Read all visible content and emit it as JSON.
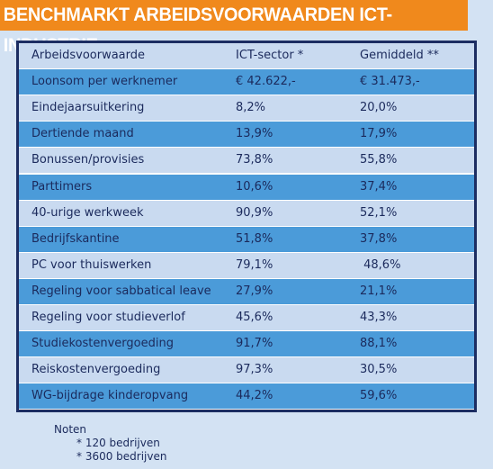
{
  "title": "BENCHMARKT ARBEIDSVOORWAARDEN ICT-INDUSTRIE",
  "table": {
    "header": [
      "Arbeidsvoorwaarde",
      "ICT-sector *",
      "Gemiddeld **"
    ],
    "rows": [
      [
        "Loonsom per werknemer",
        "€ 42.622,-",
        "€ 31.473,-"
      ],
      [
        "Eindejaarsuitkering",
        "8,2%",
        "20,0%"
      ],
      [
        "Dertiende maand",
        "13,9%",
        "17,9%"
      ],
      [
        "Bonussen/provisies",
        "73,8%",
        "55,8%"
      ],
      [
        "Parttimers",
        "10,6%",
        "37,4%"
      ],
      [
        "40-urige werkweek",
        "90,9%",
        "52,1%"
      ],
      [
        "Bedrijfskantine",
        "51,8%",
        "37,8%"
      ],
      [
        "PC voor thuiswerken",
        "79,1%",
        " 48,6%"
      ],
      [
        "Regeling voor sabbatical leave",
        "27,9%",
        "21,1%"
      ],
      [
        "Regeling voor studieverlof",
        "45,6%",
        "43,3%"
      ],
      [
        "Studiekostenvergoeding",
        "91,7%",
        "88,1%"
      ],
      [
        "Reiskostenvergoeding",
        "97,3%",
        "30,5%"
      ],
      [
        "WG-bijdrage kinderopvang",
        "44,2%",
        "59,6%"
      ]
    ]
  },
  "notes": {
    "title": "Noten",
    "items": [
      "* 120 bedrijven",
      "* 3600 bedrijven"
    ]
  }
}
